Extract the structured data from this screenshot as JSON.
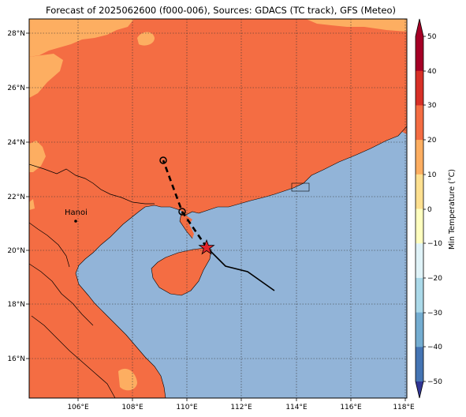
{
  "title": "Forecast of 2025062600 (f000-006), Sources: GDACS (TC track), GFS (Meteo)",
  "map": {
    "lon_ticks": [
      "106°E",
      "108°E",
      "110°E",
      "112°E",
      "114°E",
      "116°E",
      "118°E"
    ],
    "lat_ticks": [
      "16°N",
      "18°N",
      "20°N",
      "22°N",
      "24°N",
      "26°N",
      "28°N"
    ],
    "place_label": "Hanoi",
    "colors": {
      "sea": "#92b4d8",
      "land_main": "#f46d43",
      "land_cool": "#fdae61",
      "land_outline": "#000000"
    }
  },
  "storm_track": {
    "past_color": "#000000",
    "forecast_style": "dashed",
    "current_marker": "red-star",
    "forecast_markers": "hollow-circles"
  },
  "colorbar": {
    "label": "Min Temperature (°C)",
    "ticks": [
      "50",
      "40",
      "30",
      "20",
      "10",
      "0",
      "−10",
      "−20",
      "−30",
      "−40",
      "−50"
    ],
    "colors": [
      "#a50026",
      "#d73027",
      "#f46d43",
      "#fdae61",
      "#fee090",
      "#ffffbf",
      "#e0f3f8",
      "#abd9e9",
      "#74add1",
      "#4575b4",
      "#313695"
    ]
  }
}
